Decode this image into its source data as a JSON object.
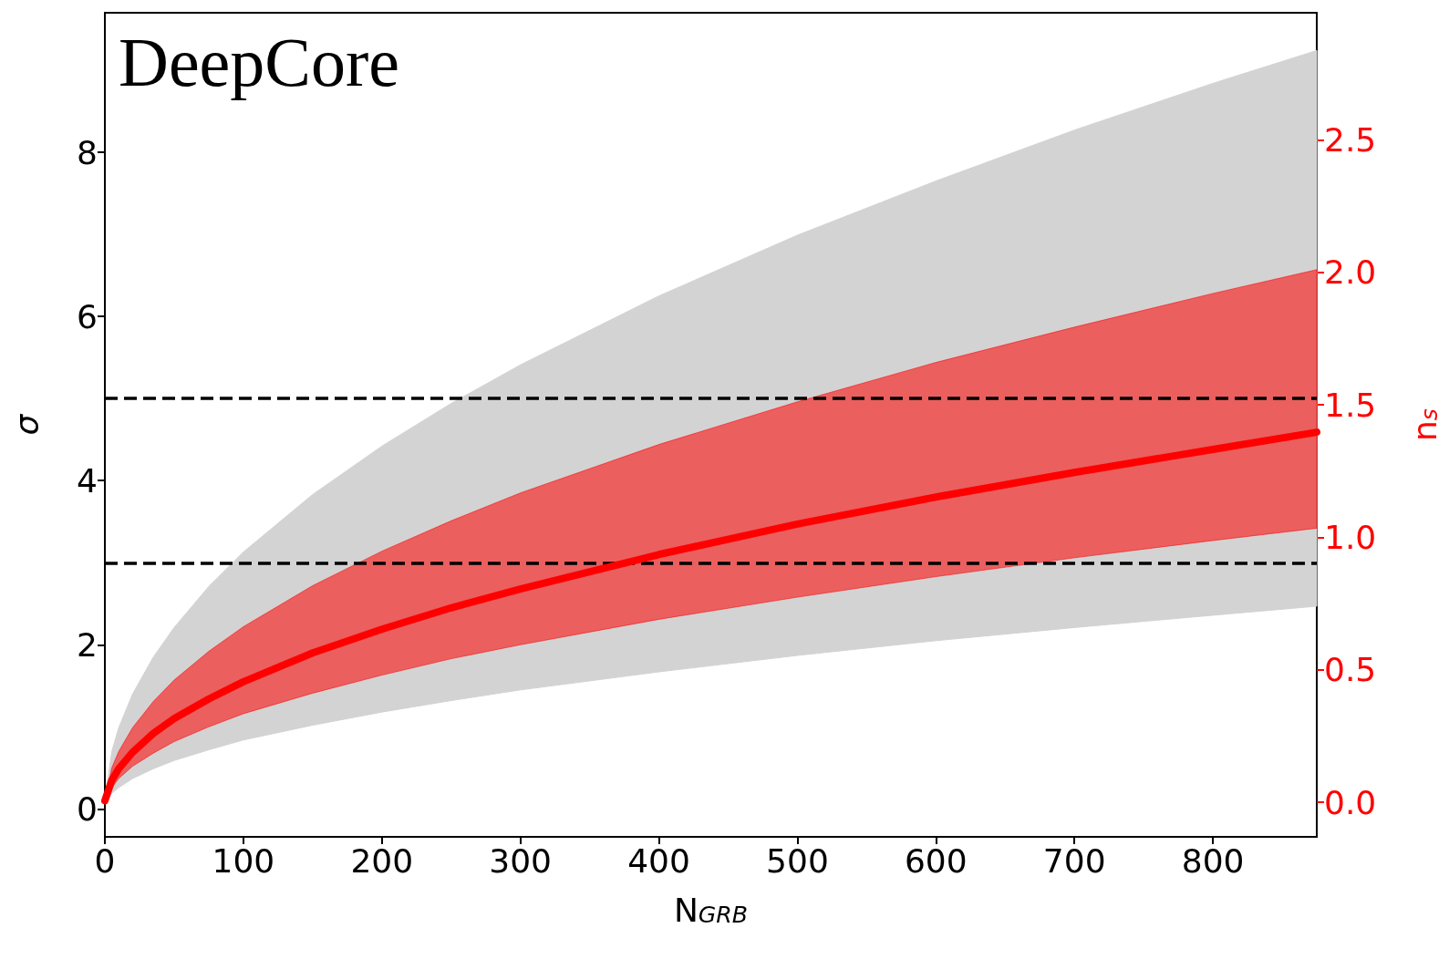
{
  "chart_data": {
    "type": "line",
    "annotations": [
      "DeepCore"
    ],
    "xlabel": "N$_{GRB}$",
    "ylabel": "σ",
    "y2label": "n$_{s}$",
    "x": [
      0,
      5,
      10,
      20,
      35,
      50,
      75,
      100,
      150,
      200,
      250,
      300,
      400,
      500,
      600,
      700,
      800,
      875
    ],
    "series": [
      {
        "type": "area",
        "color": "#d3d3d3",
        "values": [
          null,
          null,
          null,
          null,
          null,
          null,
          null,
          null,
          null,
          null,
          null,
          null,
          null,
          null,
          null,
          null,
          null,
          null
        ],
        "lower": [
          0.1,
          0.19,
          0.26,
          0.37,
          0.49,
          0.59,
          0.72,
          0.84,
          1.02,
          1.18,
          1.32,
          1.45,
          1.67,
          1.87,
          2.05,
          2.21,
          2.36,
          2.47
        ],
        "upper": [
          0.1,
          0.7,
          0.99,
          1.4,
          1.85,
          2.21,
          2.71,
          3.13,
          3.83,
          4.42,
          4.94,
          5.41,
          6.25,
          6.99,
          7.65,
          8.27,
          8.84,
          9.24
        ]
      },
      {
        "color": "#ff0000",
        "values": [
          0.1,
          0.35,
          0.49,
          0.69,
          0.92,
          1.1,
          1.34,
          1.55,
          1.9,
          2.19,
          2.45,
          2.68,
          3.1,
          3.47,
          3.8,
          4.1,
          4.38,
          4.59
        ],
        "lower": [
          0.1,
          0.26,
          0.37,
          0.52,
          0.68,
          0.82,
          1.0,
          1.16,
          1.41,
          1.63,
          1.83,
          2.0,
          2.31,
          2.58,
          2.83,
          3.06,
          3.27,
          3.42
        ],
        "upper": [
          0.1,
          0.5,
          0.7,
          0.99,
          1.31,
          1.57,
          1.92,
          2.22,
          2.72,
          3.14,
          3.51,
          3.85,
          4.44,
          4.96,
          5.44,
          5.87,
          6.28,
          6.57
        ]
      }
    ],
    "ref_lines": [
      {
        "axis": "y",
        "value": 3,
        "color": "#000000",
        "line_style": "dashed"
      },
      {
        "axis": "y",
        "value": 5,
        "color": "#000000",
        "line_style": "dashed"
      }
    ],
    "xlim": [
      0,
      875
    ],
    "xticks": [
      0,
      100,
      200,
      300,
      400,
      500,
      600,
      700,
      800
    ],
    "ylim": [
      -0.34,
      9.7
    ],
    "yticks": [
      0,
      2,
      4,
      6,
      8
    ],
    "y2lim": [
      -0.13,
      2.98
    ],
    "y2ticks": [
      {
        "value": 0,
        "label": "0.0"
      },
      {
        "value": 0.5,
        "label": "0.5"
      },
      {
        "value": 1,
        "label": "1.0"
      },
      {
        "value": 1.5,
        "label": "1.5"
      },
      {
        "value": 2,
        "label": "2.0"
      },
      {
        "value": 2.5,
        "label": "2.5"
      }
    ],
    "grid": false,
    "line_style": "solid"
  }
}
